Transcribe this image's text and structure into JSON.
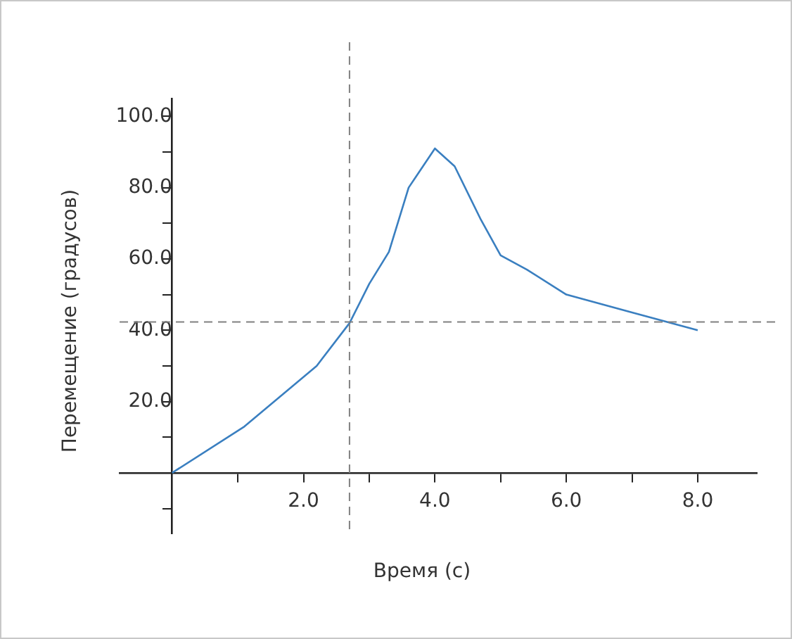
{
  "chart_data": {
    "type": "line",
    "xlabel": "Время (с)",
    "ylabel": "Перемещение (градусов)",
    "x": [
      0,
      1.1,
      2.2,
      2.7,
      3.0,
      3.3,
      3.6,
      4.0,
      4.3,
      4.7,
      5.0,
      5.4,
      6.0,
      7.0,
      8.0
    ],
    "series": [
      {
        "color": "#3a7fc0",
        "values": [
          0,
          13,
          30,
          42,
          53,
          62,
          80,
          91,
          86,
          71,
          61,
          57,
          50,
          45,
          40
        ]
      }
    ],
    "xlim": [
      -0.8,
      8.9
    ],
    "ylim": [
      -17,
      105
    ],
    "xticks": [
      {
        "value": 1,
        "label": null
      },
      {
        "value": 2,
        "label": "2.0"
      },
      {
        "value": 3,
        "label": null
      },
      {
        "value": 4,
        "label": "4.0"
      },
      {
        "value": 5,
        "label": null
      },
      {
        "value": 6,
        "label": "6.0"
      },
      {
        "value": 7,
        "label": null
      },
      {
        "value": 8,
        "label": "8.0"
      }
    ],
    "yticks": [
      {
        "value": -10,
        "label": null
      },
      {
        "value": 10,
        "label": null
      },
      {
        "value": 20,
        "label": "20.0"
      },
      {
        "value": 30,
        "label": null
      },
      {
        "value": 40,
        "label": "40.0"
      },
      {
        "value": 50,
        "label": null
      },
      {
        "value": 60,
        "label": "60.0"
      },
      {
        "value": 70,
        "label": null
      },
      {
        "value": 80,
        "label": "80.0"
      },
      {
        "value": 90,
        "label": null
      },
      {
        "value": 100,
        "label": "100.0"
      }
    ],
    "ref_lines": [
      {
        "axis": "x",
        "value": 2.7,
        "color": "#808080",
        "line_style": "dashed"
      },
      {
        "axis": "y",
        "value": 42.3,
        "color": "#808080",
        "line_style": "dashed"
      }
    ],
    "grid": false,
    "legend": false,
    "marker": "none",
    "line_style": "solid"
  }
}
